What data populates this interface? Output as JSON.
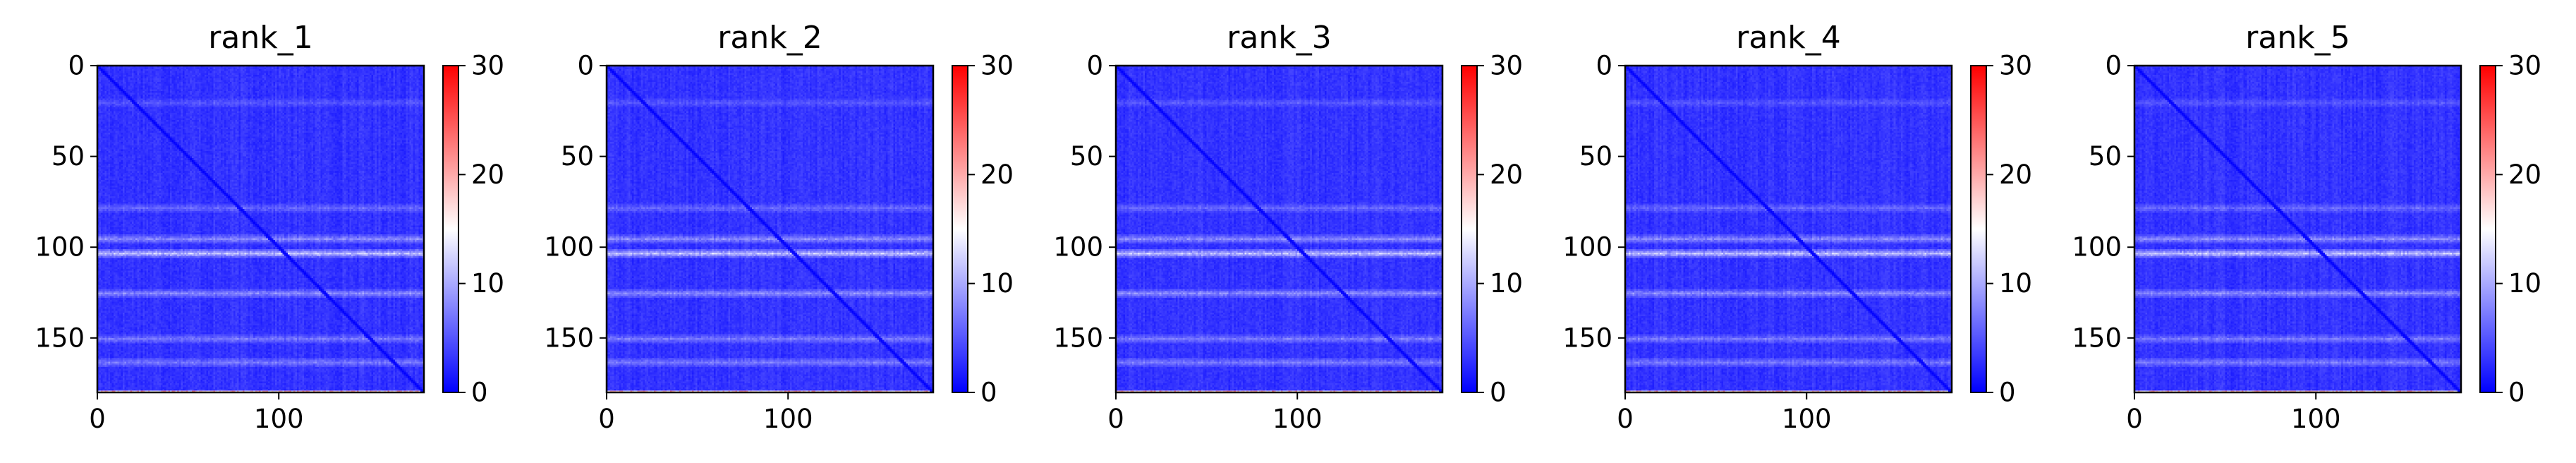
{
  "chart_data": {
    "type": "heatmap",
    "colormap": "bwr",
    "colormap_colors": [
      "#0000ff",
      "#ffffff",
      "#ff0000"
    ],
    "background": "#ffffff",
    "panels": [
      {
        "title": "rank_1"
      },
      {
        "title": "rank_2"
      },
      {
        "title": "rank_3"
      },
      {
        "title": "rank_4"
      },
      {
        "title": "rank_5"
      }
    ],
    "matrix_size": 180,
    "x_axis": {
      "range": [
        0,
        180
      ],
      "ticks": [
        0,
        100
      ],
      "tick_labels": [
        "0",
        "100"
      ]
    },
    "y_axis": {
      "range": [
        0,
        180
      ],
      "inverted": true,
      "ticks": [
        0,
        50,
        100,
        150
      ],
      "tick_labels": [
        "0",
        "50",
        "100",
        "150"
      ]
    },
    "colorbar": {
      "range": [
        0,
        30
      ],
      "ticks": [
        0,
        10,
        20,
        30
      ],
      "tick_labels": [
        "0",
        "10",
        "20",
        "30"
      ]
    },
    "approx_pattern": {
      "base_value": 3,
      "diagonal_value": 0,
      "bright_rows": [
        {
          "row": 103,
          "value": 11
        },
        {
          "row": 95,
          "value": 8
        },
        {
          "row": 125,
          "value": 8
        },
        {
          "row": 150,
          "value": 7
        },
        {
          "row": 163,
          "value": 7
        },
        {
          "row": 78,
          "value": 6
        },
        {
          "row": 20,
          "value": 5
        }
      ],
      "last_row_value": 22
    }
  }
}
